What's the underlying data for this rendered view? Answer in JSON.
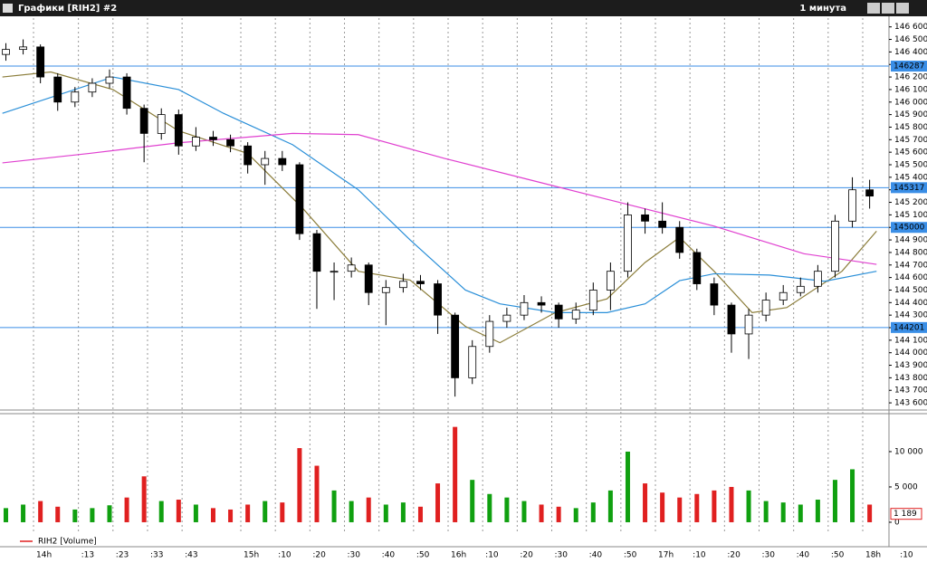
{
  "window": {
    "title": "Графики [RIH2] #2",
    "timeframe": "1 минута"
  },
  "chart_data": [
    {
      "type": "candlestick",
      "x": [
        -8,
        -3,
        2,
        7,
        12,
        17,
        22,
        27,
        32,
        37,
        42,
        47,
        52,
        57,
        62,
        67,
        72,
        77,
        82,
        87,
        92,
        97,
        102,
        107,
        112,
        117,
        122,
        127,
        132,
        137,
        142,
        147,
        152,
        157,
        162,
        167,
        172,
        177,
        182,
        187,
        192,
        197,
        202,
        207,
        212,
        217,
        222,
        227,
        232,
        237,
        242
      ],
      "open": [
        146380,
        146420,
        146440,
        146200,
        146000,
        146080,
        146150,
        146200,
        145950,
        145750,
        145900,
        145650,
        145720,
        145700,
        145650,
        145500,
        145550,
        145500,
        144950,
        144650,
        144650,
        144700,
        144480,
        144520,
        144570,
        144550,
        144300,
        143800,
        144050,
        144250,
        144300,
        144400,
        144380,
        144270,
        144340,
        144500,
        144650,
        145100,
        145050,
        145000,
        144800,
        144550,
        144380,
        144150,
        144300,
        144420,
        144480,
        144530,
        144650,
        145050,
        145300
      ],
      "high": [
        146470,
        146500,
        146460,
        146230,
        146120,
        146190,
        146260,
        146230,
        145980,
        145950,
        145940,
        145800,
        145770,
        145740,
        145680,
        145610,
        145610,
        145520,
        144980,
        144720,
        144760,
        144720,
        144580,
        144630,
        144620,
        144580,
        144320,
        144100,
        144300,
        144360,
        144460,
        144450,
        144400,
        144400,
        144560,
        144720,
        145200,
        145150,
        145200,
        145050,
        144830,
        144600,
        144400,
        144350,
        144480,
        144540,
        144600,
        144700,
        145100,
        145400,
        145380
      ],
      "low": [
        146330,
        146380,
        146150,
        145930,
        145960,
        146040,
        146110,
        145900,
        145520,
        145700,
        145580,
        145610,
        145650,
        145600,
        145430,
        145340,
        145450,
        144900,
        144350,
        144420,
        144600,
        144380,
        144220,
        144480,
        144500,
        144150,
        143650,
        143750,
        144000,
        144200,
        144260,
        144320,
        144200,
        144230,
        144300,
        144340,
        144600,
        144950,
        144950,
        144750,
        144500,
        144300,
        144000,
        143950,
        144250,
        144380,
        144450,
        144480,
        144600,
        145000,
        145150
      ],
      "close": [
        146420,
        146440,
        146200,
        146000,
        146080,
        146150,
        146200,
        145950,
        145750,
        145900,
        145650,
        145720,
        145700,
        145650,
        145500,
        145550,
        145500,
        144950,
        144650,
        144650,
        144700,
        144480,
        144520,
        144570,
        144550,
        144300,
        143800,
        144050,
        144250,
        144300,
        144400,
        144380,
        144270,
        144340,
        144500,
        144650,
        145100,
        145050,
        145000,
        144800,
        144550,
        144380,
        144150,
        144300,
        144420,
        144480,
        144530,
        144650,
        145050,
        145300,
        145250
      ],
      "xlim": [
        -9.7,
        247.6
      ],
      "xticks": [
        {
          "value": 0,
          "label": "14h"
        },
        {
          "value": 13,
          "label": ":13"
        },
        {
          "value": 23,
          "label": ":23"
        },
        {
          "value": 33,
          "label": ":33"
        },
        {
          "value": 43,
          "label": ":43"
        },
        {
          "value": 60,
          "label": "15h"
        },
        {
          "value": 70,
          "label": ":10"
        },
        {
          "value": 80,
          "label": ":20"
        },
        {
          "value": 90,
          "label": ":30"
        },
        {
          "value": 100,
          "label": ":40"
        },
        {
          "value": 110,
          "label": ":50"
        },
        {
          "value": 120,
          "label": "16h"
        },
        {
          "value": 130,
          "label": ":10"
        },
        {
          "value": 140,
          "label": ":20"
        },
        {
          "value": 150,
          "label": ":30"
        },
        {
          "value": 160,
          "label": ":40"
        },
        {
          "value": 170,
          "label": ":50"
        },
        {
          "value": 180,
          "label": "17h"
        },
        {
          "value": 190,
          "label": ":10"
        },
        {
          "value": 200,
          "label": ":20"
        },
        {
          "value": 210,
          "label": ":30"
        },
        {
          "value": 220,
          "label": ":40"
        },
        {
          "value": 230,
          "label": ":50"
        },
        {
          "value": 240,
          "label": "18h"
        },
        {
          "value": 250,
          "label": ":10"
        }
      ],
      "ylim": [
        143550,
        146670
      ],
      "yticks": [
        {
          "value": 143600,
          "label": "143 600"
        },
        {
          "value": 143700,
          "label": "143 700"
        },
        {
          "value": 143800,
          "label": "143 800"
        },
        {
          "value": 143900,
          "label": "143 900"
        },
        {
          "value": 144000,
          "label": "144 000"
        },
        {
          "value": 144100,
          "label": "144 100"
        },
        {
          "value": 144200,
          "label": "144 200"
        },
        {
          "value": 144300,
          "label": "144 300"
        },
        {
          "value": 144400,
          "label": "144 400"
        },
        {
          "value": 144500,
          "label": "144 500"
        },
        {
          "value": 144600,
          "label": "144 600"
        },
        {
          "value": 144700,
          "label": "144 700"
        },
        {
          "value": 144800,
          "label": "144 800"
        },
        {
          "value": 144900,
          "label": "144 900"
        },
        {
          "value": 145000,
          "label": "145 000"
        },
        {
          "value": 145100,
          "label": "145 100"
        },
        {
          "value": 145200,
          "label": "145 200"
        },
        {
          "value": 145300,
          "label": "145 300"
        },
        {
          "value": 145400,
          "label": "145 400"
        },
        {
          "value": 145500,
          "label": "145 500"
        },
        {
          "value": 145600,
          "label": "145 600"
        },
        {
          "value": 145700,
          "label": "145 700"
        },
        {
          "value": 145800,
          "label": "145 800"
        },
        {
          "value": 145900,
          "label": "145 900"
        },
        {
          "value": 146000,
          "label": "146 000"
        },
        {
          "value": 146100,
          "label": "146 100"
        },
        {
          "value": 146200,
          "label": "146 200"
        },
        {
          "value": 146300,
          "label": "146 300"
        },
        {
          "value": 146400,
          "label": "146 400"
        },
        {
          "value": 146500,
          "label": "146 500"
        },
        {
          "value": 146600,
          "label": "146 600"
        }
      ],
      "levels": [
        146287,
        145317,
        145000,
        144201
      ],
      "level_color": "#3a8ee6",
      "grid": true,
      "lines": [
        {
          "color": "#8b7d3a",
          "x": [
            -9,
            5,
            23,
            42,
            62,
            78,
            94,
            109,
            125,
            135,
            151,
            166,
            177,
            187,
            197,
            208,
            218,
            234,
            244
          ],
          "values": [
            146200,
            146240,
            146100,
            145770,
            145590,
            145150,
            144650,
            144580,
            144210,
            144080,
            144320,
            144430,
            144720,
            144920,
            144650,
            144320,
            144360,
            144650,
            144970
          ]
        },
        {
          "color": "#2a8fd8",
          "x": [
            -9,
            23,
            42,
            55,
            75,
            94,
            109,
            125,
            135,
            151,
            166,
            177,
            187,
            197,
            213,
            229,
            244
          ],
          "values": [
            145910,
            146200,
            146100,
            145910,
            145660,
            145300,
            144900,
            144500,
            144390,
            144320,
            144320,
            144390,
            144575,
            144630,
            144620,
            144570,
            144650
          ]
        },
        {
          "color": "#e040d0",
          "x": [
            -9,
            16,
            42,
            75,
            94,
            119,
            145,
            171,
            197,
            223,
            244
          ],
          "values": [
            145515,
            145590,
            145675,
            145750,
            145740,
            145550,
            145370,
            145190,
            145010,
            144790,
            144705
          ]
        }
      ]
    },
    {
      "type": "bar",
      "x": [
        -8,
        -3,
        2,
        7,
        12,
        17,
        22,
        27,
        32,
        37,
        42,
        47,
        52,
        57,
        62,
        67,
        72,
        77,
        82,
        87,
        92,
        97,
        102,
        107,
        112,
        117,
        122,
        127,
        132,
        137,
        142,
        147,
        152,
        157,
        162,
        167,
        172,
        177,
        182,
        187,
        192,
        197,
        202,
        207,
        212,
        217,
        222,
        227,
        232,
        237,
        242
      ],
      "series": [
        {
          "name": "RIH2 [Volume]",
          "color": "#e02020",
          "values": [
            2000,
            2500,
            3000,
            2200,
            1800,
            2000,
            2400,
            3500,
            6500,
            3000,
            3200,
            2500,
            2000,
            1800,
            2500,
            3000,
            2800,
            10500,
            8000,
            4500,
            3000,
            3500,
            2500,
            2800,
            2200,
            5500,
            13500,
            6000,
            4000,
            3500,
            3000,
            2500,
            2200,
            2000,
            2800,
            4500,
            10000,
            5500,
            4200,
            3500,
            4000,
            4500,
            5000,
            4500,
            3000,
            2800,
            2500,
            3200,
            6000,
            7500,
            2500
          ]
        }
      ],
      "up_color": "#10a010",
      "xlim": [
        -9.7,
        247.6
      ],
      "ylim": [
        -1670,
        15250
      ],
      "yticks": [
        0,
        {
          "value": 5000,
          "label": "5 000"
        },
        {
          "value": 10000,
          "label": "10 000"
        }
      ],
      "last": {
        "value": 1189,
        "label": "1 189"
      }
    }
  ]
}
